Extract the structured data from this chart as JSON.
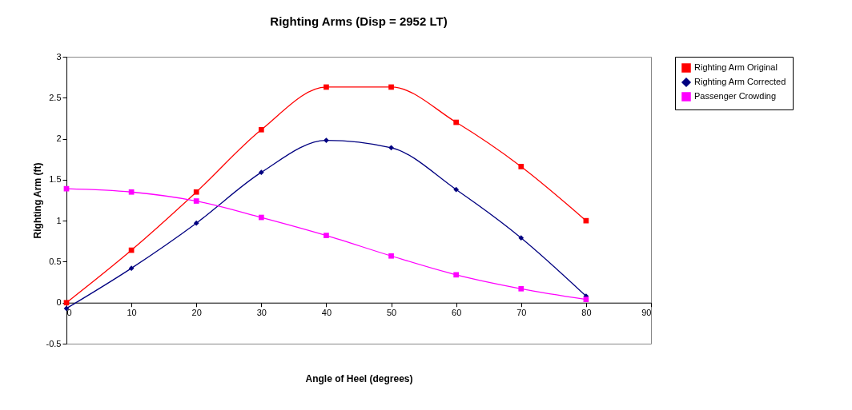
{
  "chart_data": {
    "type": "line",
    "title": "Righting Arms (Disp = 2952 LT)",
    "xlabel": "Angle of Heel (degrees)",
    "ylabel": "Righting Arm (ft)",
    "x": [
      0,
      10,
      20,
      30,
      40,
      50,
      60,
      70,
      80
    ],
    "series": [
      {
        "name": "Righting Arm Original",
        "color": "#ff0000",
        "marker": "square",
        "values": [
          0,
          0.64,
          1.35,
          2.11,
          2.63,
          2.63,
          2.2,
          1.66,
          1.0
        ]
      },
      {
        "name": "Righting Arm Corrected",
        "color": "#000080",
        "marker": "diamond",
        "values": [
          -0.07,
          0.42,
          0.97,
          1.59,
          1.98,
          1.89,
          1.38,
          0.79,
          0.08
        ]
      },
      {
        "name": "Passenger Crowding",
        "color": "#ff00ff",
        "marker": "square",
        "values": [
          1.39,
          1.35,
          1.24,
          1.04,
          0.82,
          0.57,
          0.34,
          0.17,
          0.04
        ]
      }
    ],
    "xlim": [
      0,
      90
    ],
    "xticks": [
      0,
      10,
      20,
      30,
      40,
      50,
      60,
      70,
      80,
      90
    ],
    "ylim": [
      -0.5,
      3
    ],
    "yticks": [
      -0.5,
      0,
      0.5,
      1,
      1.5,
      2,
      2.5,
      3
    ],
    "legend": "right",
    "grid": false
  }
}
